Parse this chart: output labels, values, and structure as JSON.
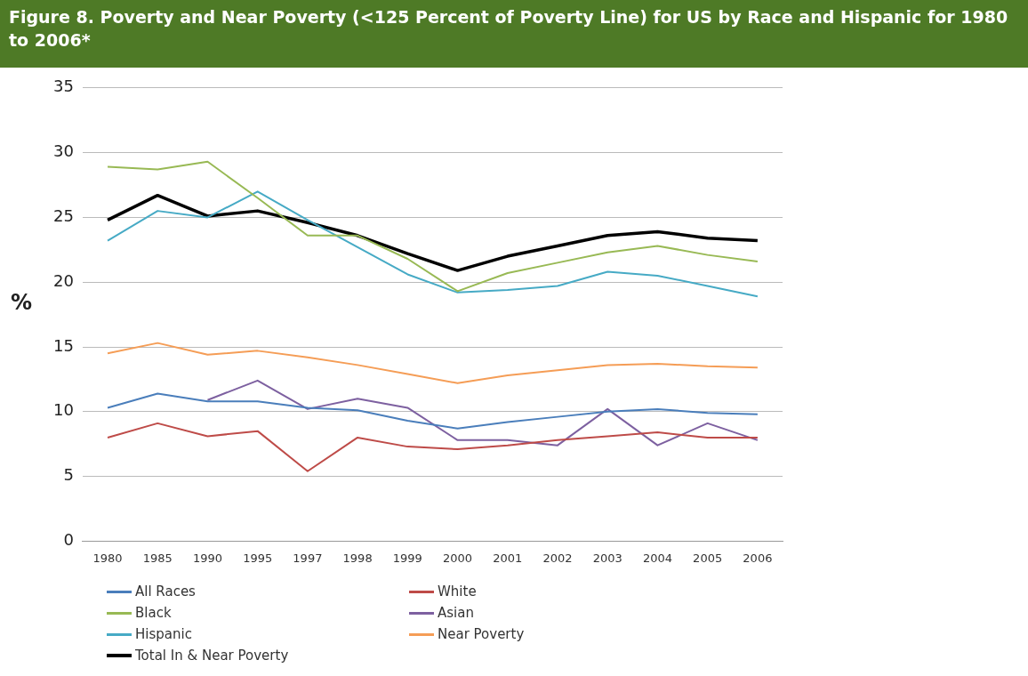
{
  "chart_data": {
    "type": "line",
    "title": "Figure 8. Poverty and Near Poverty (<125 Percent of Poverty Line) for US by Race and Hispanic for 1980 to 2006*",
    "ylabel": "%",
    "categories": [
      "1980",
      "1985",
      "1990",
      "1995",
      "1997",
      "1998",
      "1999",
      "2000",
      "2001",
      "2002",
      "2003",
      "2004",
      "2005",
      "2006"
    ],
    "series": [
      {
        "name": "All Races",
        "color": "#4a7ebb",
        "values": [
          10.3,
          11.4,
          10.8,
          10.8,
          10.3,
          10.1,
          9.3,
          8.7,
          9.2,
          9.6,
          10.0,
          10.2,
          9.9,
          9.8
        ]
      },
      {
        "name": "White",
        "color": "#be4b48",
        "values": [
          8.0,
          9.1,
          8.1,
          8.5,
          5.4,
          8.0,
          7.3,
          7.1,
          7.4,
          7.8,
          8.1,
          8.4,
          8.0,
          8.0
        ]
      },
      {
        "name": "Black",
        "color": "#98b954",
        "values": [
          28.9,
          28.7,
          29.3,
          26.5,
          23.6,
          23.6,
          21.8,
          19.3,
          20.7,
          21.5,
          22.3,
          22.8,
          22.1,
          21.6
        ]
      },
      {
        "name": "Asian",
        "color": "#7d60a0",
        "values": [
          null,
          null,
          10.9,
          12.4,
          10.2,
          11.0,
          10.3,
          7.8,
          7.8,
          7.4,
          10.2,
          7.4,
          9.1,
          7.8
        ]
      },
      {
        "name": "Hispanic",
        "color": "#46aac5",
        "values": [
          23.2,
          25.5,
          25.0,
          27.0,
          24.8,
          22.7,
          20.6,
          19.2,
          19.4,
          19.7,
          20.8,
          20.5,
          19.7,
          18.9
        ]
      },
      {
        "name": "Near Poverty",
        "color": "#f59d56",
        "values": [
          14.5,
          15.3,
          14.4,
          14.7,
          14.2,
          13.6,
          12.9,
          12.2,
          12.8,
          13.2,
          13.6,
          13.7,
          13.5,
          13.4
        ]
      },
      {
        "name": "Total In & Near Poverty",
        "color": "#000000",
        "values": [
          24.8,
          26.7,
          25.1,
          25.5,
          24.6,
          23.6,
          22.2,
          20.9,
          22.0,
          22.8,
          23.6,
          23.9,
          23.4,
          23.2
        ]
      }
    ],
    "ylim": [
      0,
      35
    ],
    "yticks": [
      0,
      5,
      10,
      15,
      20,
      25,
      30,
      35
    ],
    "grid": "y",
    "legend": "bottom",
    "marker": "none",
    "line_style": "solid"
  }
}
